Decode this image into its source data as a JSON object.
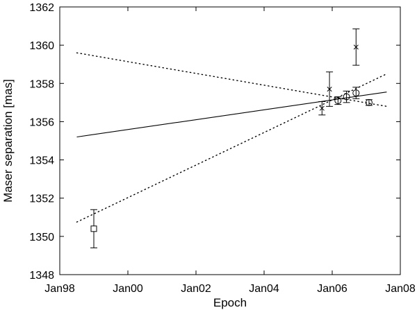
{
  "chart_data": {
    "type": "scatter",
    "xlabel": "Epoch",
    "ylabel": "Maser separation [mas]",
    "x_unit": "year",
    "x_ticks": [
      {
        "value": 1998,
        "label": "Jan98"
      },
      {
        "value": 2000,
        "label": "Jan00"
      },
      {
        "value": 2002,
        "label": "Jan02"
      },
      {
        "value": 2004,
        "label": "Jan04"
      },
      {
        "value": 2006,
        "label": "Jan06"
      },
      {
        "value": 2008,
        "label": "Jan08"
      }
    ],
    "y_ticks": [
      1348,
      1350,
      1352,
      1354,
      1356,
      1358,
      1360,
      1362
    ],
    "xlim": [
      1998,
      2008
    ],
    "ylim": [
      1348,
      1362
    ],
    "grid": false,
    "series": [
      {
        "marker": "square",
        "points": [
          {
            "x": 1999.0,
            "y": 1350.4,
            "err": 1.0
          }
        ]
      },
      {
        "marker": "cross",
        "points": [
          {
            "x": 2005.7,
            "y": 1356.7,
            "err": 0.35
          },
          {
            "x": 2005.92,
            "y": 1357.7,
            "err": 0.9
          },
          {
            "x": 2006.7,
            "y": 1359.9,
            "err": 0.95
          }
        ]
      },
      {
        "marker": "circle",
        "points": [
          {
            "x": 2006.17,
            "y": 1357.1,
            "err": 0.2
          },
          {
            "x": 2006.42,
            "y": 1357.3,
            "err": 0.3
          },
          {
            "x": 2006.7,
            "y": 1357.5,
            "err": 0.3
          },
          {
            "x": 2007.08,
            "y": 1357.0,
            "err": 0.15
          }
        ]
      }
    ],
    "lines": [
      {
        "style": "solid",
        "x": [
          1998.5,
          2007.6
        ],
        "y": [
          1355.2,
          1357.55
        ]
      },
      {
        "style": "dotted",
        "x": [
          1998.5,
          2007.6
        ],
        "y": [
          1359.6,
          1356.8
        ]
      },
      {
        "style": "dotted",
        "x": [
          1998.5,
          2007.6
        ],
        "y": [
          1350.75,
          1358.5
        ]
      }
    ]
  }
}
